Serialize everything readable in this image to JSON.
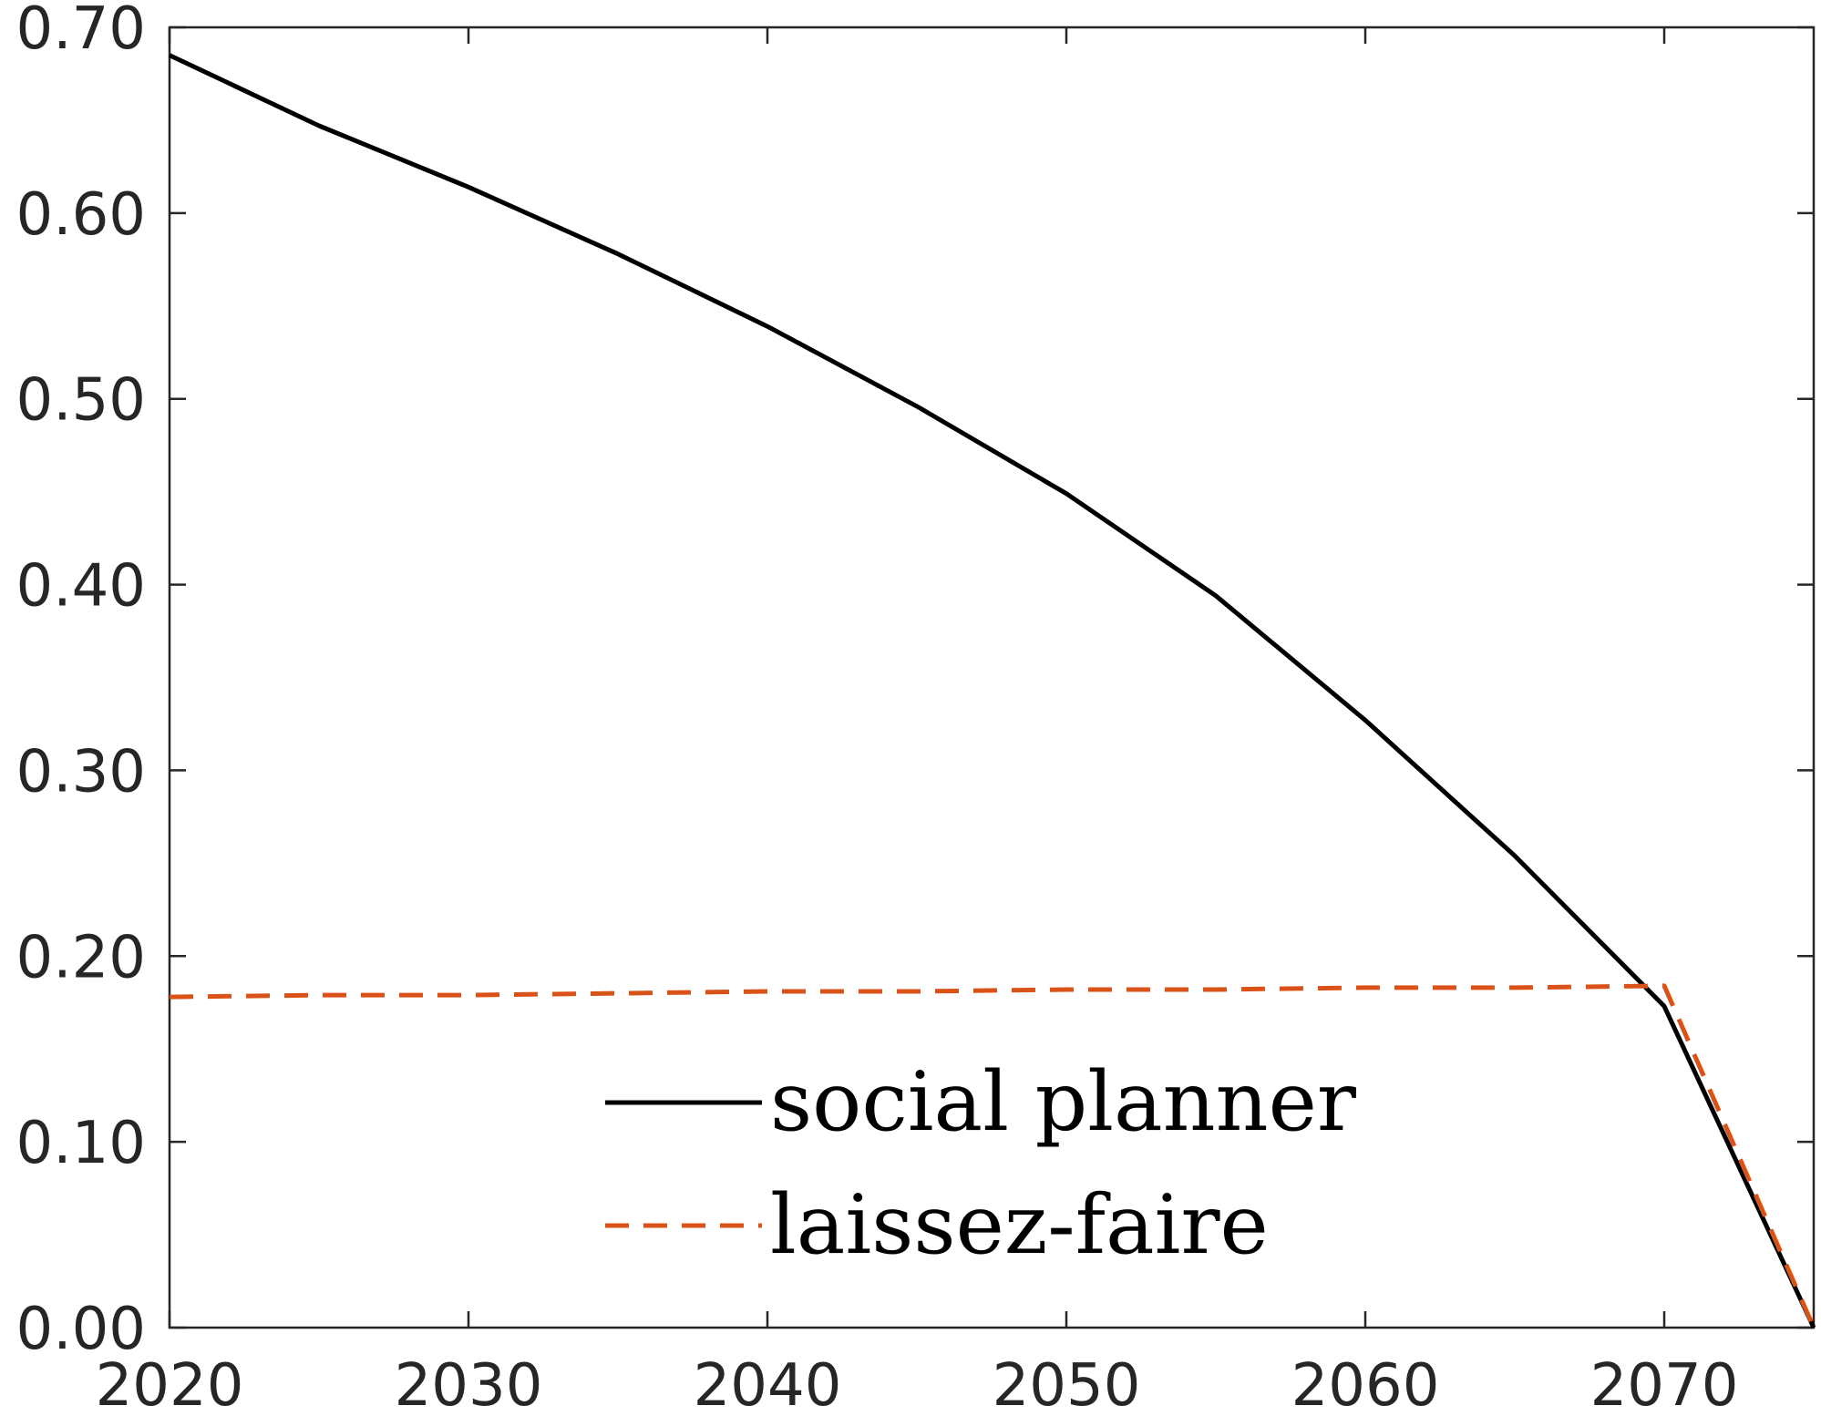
{
  "chart_data": {
    "type": "line",
    "x": [
      2020,
      2025,
      2030,
      2035,
      2040,
      2045,
      2050,
      2055,
      2060,
      2065,
      2070,
      2075
    ],
    "series": [
      {
        "name": "social planner",
        "color": "#000000",
        "line_style": "solid",
        "values": [
          0.685,
          0.647,
          0.614,
          0.578,
          0.539,
          0.496,
          0.449,
          0.394,
          0.327,
          0.254,
          0.173,
          0.0
        ]
      },
      {
        "name": "laissez-faire",
        "color": "#D95319",
        "line_style": "dashed",
        "values": [
          0.178,
          0.179,
          0.179,
          0.18,
          0.181,
          0.181,
          0.182,
          0.182,
          0.183,
          0.183,
          0.184,
          0.0
        ]
      }
    ],
    "xlim": [
      2020,
      2075
    ],
    "ylim": [
      0,
      0.7
    ],
    "x_ticks": [
      "2020",
      "2030",
      "2040",
      "2050",
      "2060",
      "2070"
    ],
    "x_tick_values": [
      2020,
      2030,
      2040,
      2050,
      2060,
      2070
    ],
    "y_ticks": [
      "0.00",
      "0.10",
      "0.20",
      "0.30",
      "0.40",
      "0.50",
      "0.60",
      "0.70"
    ],
    "y_tick_values": [
      0,
      0.1,
      0.2,
      0.3,
      0.4,
      0.5,
      0.6,
      0.7
    ],
    "grid": false,
    "legend_position": "bottom-center",
    "axis_color": "#262626"
  }
}
